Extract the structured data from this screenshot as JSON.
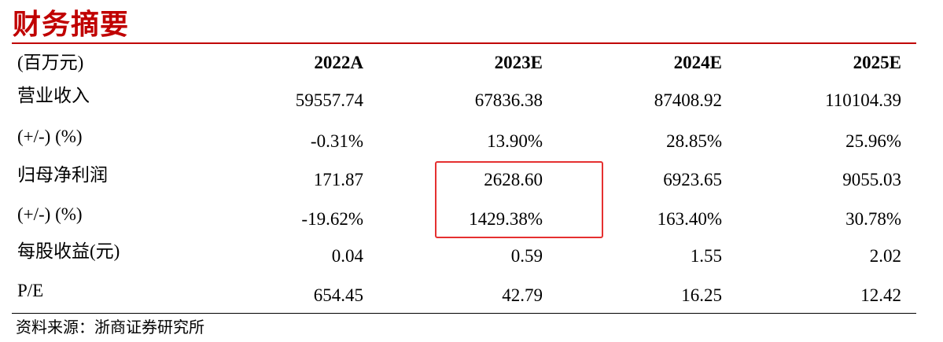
{
  "header": {
    "title": "财务摘要"
  },
  "table": {
    "columns": [
      "(百万元)",
      "2022A",
      "2023E",
      "2024E",
      "2025E"
    ],
    "rows": [
      [
        "营业收入",
        "59557.74",
        "67836.38",
        "87408.92",
        "110104.39"
      ],
      [
        "(+/-) (%)",
        "-0.31%",
        "13.90%",
        "28.85%",
        "25.96%"
      ],
      [
        "归母净利润",
        "171.87",
        "2628.60",
        "6923.65",
        "9055.03"
      ],
      [
        "(+/-) (%)",
        "-19.62%",
        "1429.38%",
        "163.40%",
        "30.78%"
      ],
      [
        "每股收益(元)",
        "0.04",
        "0.59",
        "1.55",
        "2.02"
      ],
      [
        "P/E",
        "654.45",
        "42.79",
        "16.25",
        "12.42"
      ]
    ]
  },
  "source": "资料来源：浙商证券研究所"
}
